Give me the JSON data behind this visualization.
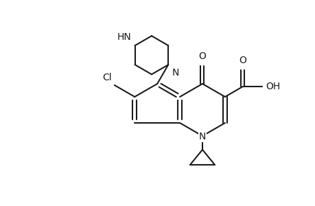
{
  "bg_color": "#ffffff",
  "line_color": "#1a1a1a",
  "line_width": 1.5,
  "font_size": 10,
  "fig_width": 4.6,
  "fig_height": 3.0,
  "dpi": 100,
  "xlim": [
    0,
    460
  ],
  "ylim": [
    300,
    0
  ]
}
